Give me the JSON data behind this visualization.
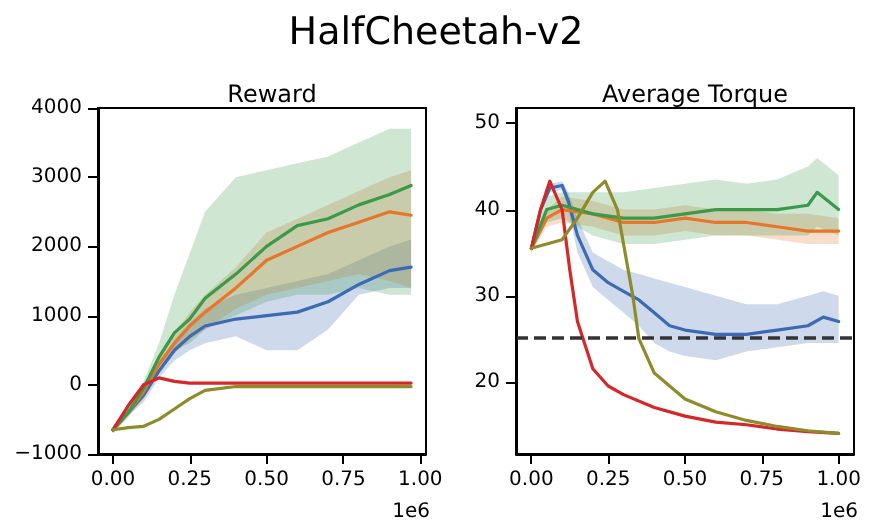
{
  "chart_data": [
    {
      "type": "line",
      "title": "Reward",
      "annotations": [
        "HalfCheetah-v2",
        "1e6"
      ],
      "grid": false,
      "marker": "none",
      "line_style": "solid",
      "x": [
        0,
        0.05,
        0.1,
        0.15,
        0.2,
        0.25,
        0.3,
        0.4,
        0.5,
        0.6,
        0.7,
        0.8,
        0.9,
        0.97
      ],
      "xlim": [
        -0.0485,
        1.0185
      ],
      "xticks": [
        {
          "value": 0,
          "label": "0.00"
        },
        {
          "value": 0.25,
          "label": "0.25"
        },
        {
          "value": 0.5,
          "label": "0.50"
        },
        {
          "value": 0.75,
          "label": "0.75"
        },
        {
          "value": 1,
          "label": "1.00"
        }
      ],
      "ylim": [
        -1000,
        4000
      ],
      "yticks": [
        {
          "value": -1000,
          "label": "−1000"
        },
        0,
        1000,
        2000,
        3000,
        4000
      ],
      "series": [
        {
          "color": "#3d6bb3",
          "values": [
            -650,
            -400,
            -150,
            200,
            500,
            700,
            850,
            950,
            1000,
            1050,
            1200,
            1450,
            1650,
            1700
          ],
          "upper": [
            -600,
            -350,
            -50,
            300,
            650,
            900,
            1100,
            1300,
            1400,
            1500,
            1600,
            1800,
            2000,
            2100
          ],
          "lower": [
            -700,
            -450,
            -250,
            100,
            350,
            500,
            600,
            700,
            500,
            500,
            800,
            1300,
            1400,
            1400
          ]
        },
        {
          "color": "#e5762a",
          "values": [
            -650,
            -400,
            -100,
            300,
            600,
            850,
            1050,
            1400,
            1800,
            2000,
            2200,
            2350,
            2500,
            2450
          ],
          "upper": [
            -600,
            -350,
            0,
            400,
            750,
            1050,
            1300,
            1700,
            2200,
            2400,
            2600,
            2800,
            3000,
            3100
          ],
          "lower": [
            -700,
            -450,
            -200,
            200,
            450,
            650,
            800,
            1100,
            1300,
            1400,
            1500,
            1600,
            1500,
            1400
          ]
        },
        {
          "color": "#3a9a4a",
          "values": [
            -650,
            -400,
            -50,
            400,
            750,
            950,
            1250,
            1600,
            2000,
            2300,
            2400,
            2600,
            2750,
            2880
          ],
          "upper": [
            -600,
            -330,
            50,
            600,
            1300,
            1900,
            2500,
            3000,
            3100,
            3200,
            3300,
            3500,
            3700,
            3700
          ],
          "lower": [
            -700,
            -470,
            -150,
            250,
            500,
            600,
            800,
            1000,
            1200,
            1300,
            1300,
            1400,
            1300,
            1300
          ]
        },
        {
          "color": "#d62728",
          "values": [
            -650,
            -300,
            0,
            100,
            50,
            25,
            25,
            25,
            25,
            25,
            25,
            25,
            25,
            25
          ]
        },
        {
          "color": "#8f8a2a",
          "values": [
            -650,
            -620,
            -600,
            -500,
            -350,
            -200,
            -80,
            -25,
            -25,
            -25,
            -25,
            -25,
            -25,
            -25
          ]
        }
      ]
    },
    {
      "type": "line",
      "title": "Average Torque",
      "annotations": [
        "1e6"
      ],
      "grid": false,
      "marker": "none",
      "line_style": "solid",
      "xlim": [
        -0.05,
        1.05
      ],
      "xticks": [
        {
          "value": 0,
          "label": "0.00"
        },
        {
          "value": 0.25,
          "label": "0.25"
        },
        {
          "value": 0.5,
          "label": "0.50"
        },
        {
          "value": 0.75,
          "label": "0.75"
        },
        {
          "value": 1,
          "label": "1.00"
        }
      ],
      "ylim": [
        11.6,
        51.8
      ],
      "yticks": [
        20,
        30,
        40,
        50
      ],
      "ref_lines": [
        {
          "axis": "y",
          "value": 25.2,
          "color": "#333333",
          "line_style": "dashed"
        }
      ],
      "series": [
        {
          "color": "#3d6bb3",
          "x": [
            0,
            0.03,
            0.06,
            0.1,
            0.12,
            0.15,
            0.2,
            0.25,
            0.3,
            0.35,
            0.4,
            0.45,
            0.5,
            0.6,
            0.7,
            0.8,
            0.9,
            0.95,
            1
          ],
          "values": [
            35.5,
            40,
            42.5,
            42.8,
            41,
            37,
            33,
            31.5,
            30.5,
            29.5,
            28,
            26.5,
            26,
            25.5,
            25.5,
            26,
            26.5,
            27.5,
            27
          ],
          "upper": [
            35.8,
            40.5,
            43,
            43.3,
            42,
            39,
            35,
            34,
            33,
            32.5,
            32,
            31.5,
            31,
            30,
            29,
            29,
            30,
            30.5,
            30
          ],
          "lower": [
            35.2,
            39.5,
            42,
            42.3,
            40,
            35,
            31,
            29.5,
            28,
            26.5,
            24.5,
            23.5,
            23,
            22.5,
            23.5,
            24,
            24.5,
            24.5,
            24.5
          ]
        },
        {
          "color": "#e5762a",
          "x": [
            0,
            0.05,
            0.1,
            0.2,
            0.3,
            0.4,
            0.5,
            0.6,
            0.7,
            0.8,
            0.9,
            1
          ],
          "values": [
            35.5,
            39,
            40,
            39.5,
            38.5,
            38.5,
            39,
            38.5,
            38.5,
            38,
            37.5,
            37.5
          ],
          "upper": [
            36,
            40,
            41.5,
            41,
            40,
            40,
            40.5,
            40,
            40,
            39.5,
            39.5,
            39
          ],
          "lower": [
            35,
            38,
            38.5,
            38,
            37,
            37,
            37.5,
            37,
            37,
            36.5,
            36,
            36
          ]
        },
        {
          "color": "#3a9a4a",
          "x": [
            0,
            0.05,
            0.1,
            0.2,
            0.3,
            0.4,
            0.5,
            0.6,
            0.7,
            0.8,
            0.9,
            0.93,
            1
          ],
          "values": [
            35.5,
            40,
            40.5,
            39.5,
            39,
            39,
            39.5,
            40,
            40,
            40,
            40.5,
            42,
            40
          ],
          "upper": [
            36,
            41.5,
            42,
            42,
            42,
            42.5,
            43,
            43.5,
            43,
            43.5,
            45,
            46,
            44
          ],
          "lower": [
            35,
            38.5,
            39,
            37,
            36,
            36,
            36.5,
            37,
            37,
            37,
            37,
            38,
            37
          ]
        },
        {
          "color": "#d62728",
          "x": [
            0,
            0.03,
            0.06,
            0.1,
            0.125,
            0.15,
            0.2,
            0.25,
            0.3,
            0.4,
            0.5,
            0.6,
            0.7,
            0.8,
            0.9,
            1
          ],
          "values": [
            35.5,
            40,
            43.3,
            40,
            33,
            27,
            21.5,
            19.5,
            18.5,
            17,
            16,
            15.3,
            15,
            14.5,
            14.2,
            14
          ]
        },
        {
          "color": "#8f8a2a",
          "x": [
            0,
            0.05,
            0.1,
            0.15,
            0.2,
            0.24,
            0.28,
            0.3,
            0.33,
            0.35,
            0.4,
            0.5,
            0.6,
            0.7,
            0.8,
            0.9,
            1
          ],
          "values": [
            35.5,
            36,
            36.5,
            39,
            42,
            43.3,
            40,
            36,
            30,
            25,
            21,
            18,
            16.5,
            15.5,
            14.8,
            14.3,
            14
          ]
        }
      ]
    }
  ]
}
